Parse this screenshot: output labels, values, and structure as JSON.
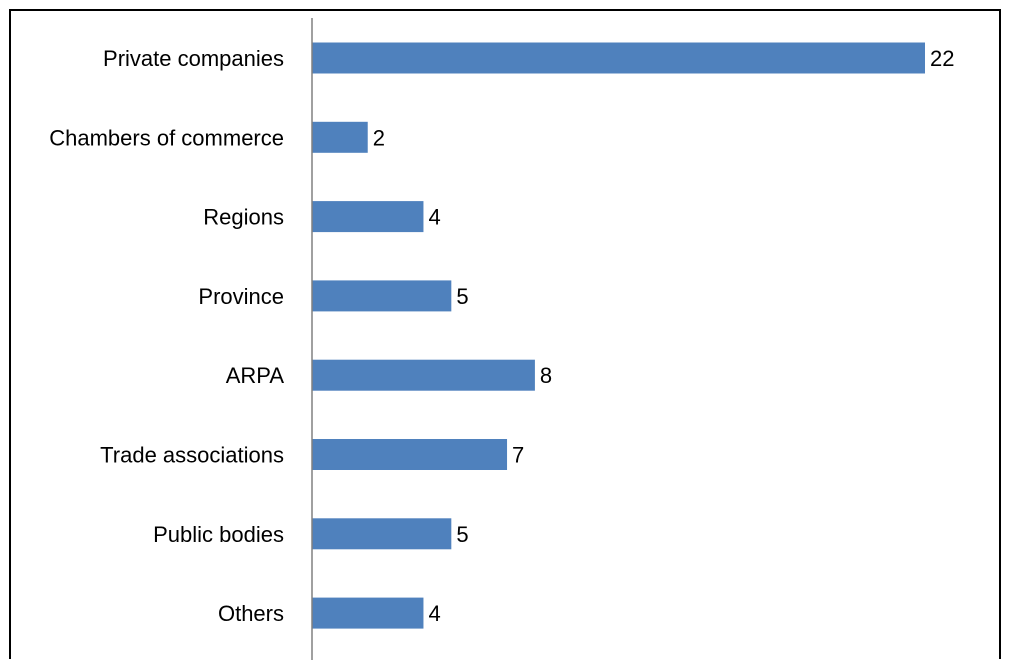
{
  "chart_data": {
    "type": "bar",
    "orientation": "horizontal",
    "title": "",
    "xlabel": "",
    "ylabel": "",
    "categories": [
      "Private companies",
      "Chambers of commerce",
      "Regions",
      "Province",
      "ARPA",
      "Trade associations",
      "Public bodies",
      "Others"
    ],
    "values": [
      22,
      2,
      4,
      5,
      8,
      7,
      5,
      4
    ],
    "xlim": [
      0,
      22
    ],
    "grid": false,
    "legend": "none",
    "data_labels": true,
    "bar_color": "#4F81BD",
    "axis_color": "#808080"
  }
}
